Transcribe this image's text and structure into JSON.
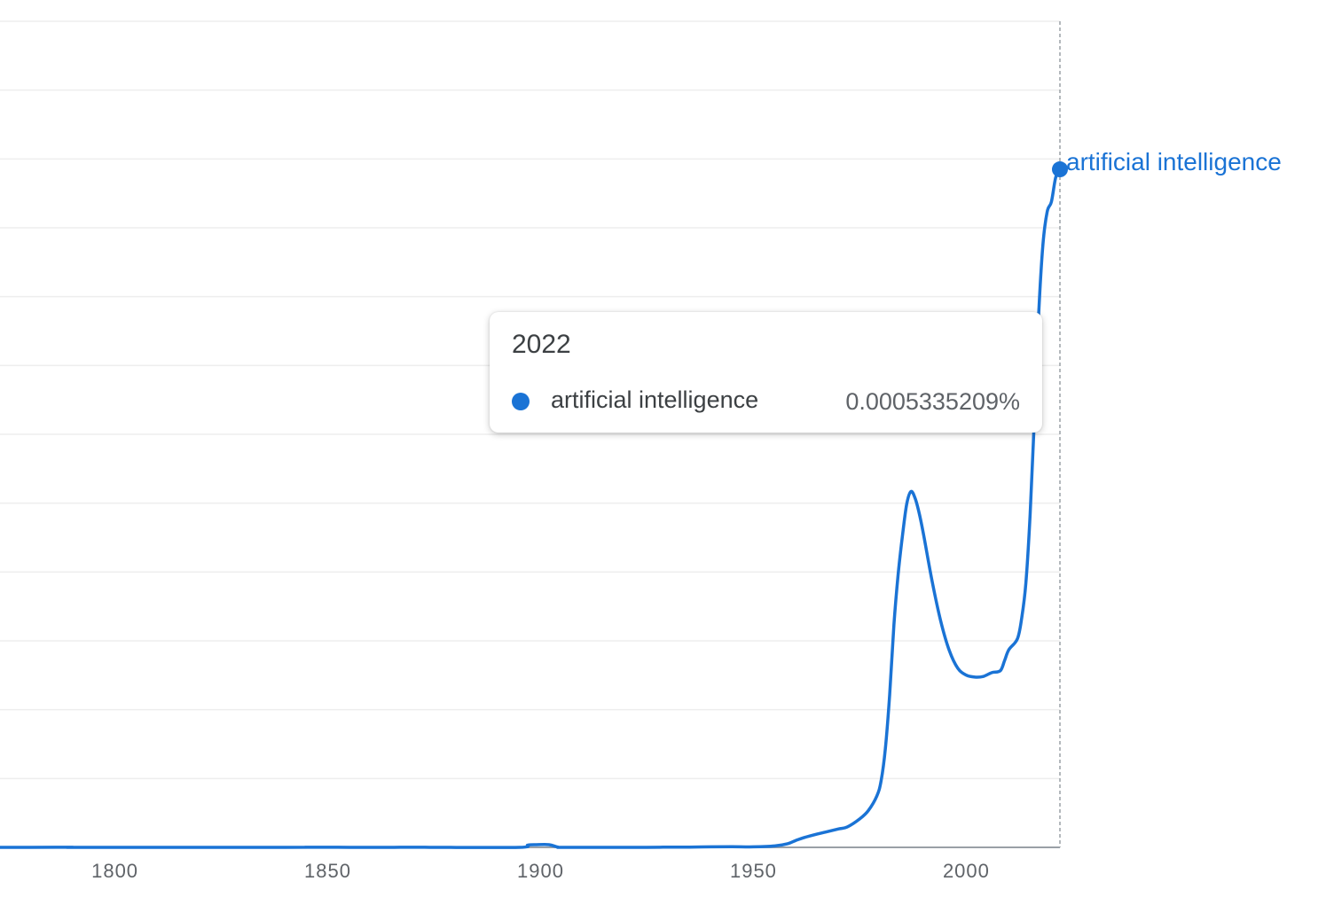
{
  "colors": {
    "series": "#1a73d5",
    "grid": "#eeeeee",
    "axis": "#9aa0a6",
    "tick_text": "#5f6368",
    "hover_line": "#9aa0a6"
  },
  "chart_data": {
    "type": "line",
    "title": "",
    "xlabel": "",
    "ylabel": "",
    "grid": true,
    "legend": "end-of-line label",
    "xlim": [
      1773,
      2022
    ],
    "ylim": [
      0,
      0.00065
    ],
    "x_ticks": [
      1800,
      1850,
      1900,
      1950,
      2000
    ],
    "series": [
      {
        "name": "artificial intelligence",
        "points": [
          [
            1773,
            0.0
          ],
          [
            1780,
            0.0
          ],
          [
            1786,
            1e-07
          ],
          [
            1790,
            1e-07
          ],
          [
            1793,
            0.0
          ],
          [
            1840,
            0.0
          ],
          [
            1845,
            1e-07
          ],
          [
            1850,
            1e-07
          ],
          [
            1855,
            0.0
          ],
          [
            1865,
            0.0
          ],
          [
            1868,
            1e-07
          ],
          [
            1872,
            1e-07
          ],
          [
            1876,
            0.0
          ],
          [
            1895,
            0.0
          ],
          [
            1897,
            1.8e-06
          ],
          [
            1899,
            2.1e-06
          ],
          [
            1902,
            2.1e-06
          ],
          [
            1904,
            3e-07
          ],
          [
            1906,
            0.0
          ],
          [
            1925,
            0.0
          ],
          [
            1930,
            2e-07
          ],
          [
            1935,
            2e-07
          ],
          [
            1940,
            4e-07
          ],
          [
            1945,
            5e-07
          ],
          [
            1950,
            4e-07
          ],
          [
            1955,
            1.1e-06
          ],
          [
            1958,
            2.8e-06
          ],
          [
            1960,
            5.5e-06
          ],
          [
            1962,
            7.8e-06
          ],
          [
            1965,
            1.05e-05
          ],
          [
            1967,
            1.21e-05
          ],
          [
            1970,
            1.45e-05
          ],
          [
            1972,
            1.6e-05
          ],
          [
            1975,
            2.25e-05
          ],
          [
            1977,
            2.9e-05
          ],
          [
            1979,
            4.05e-05
          ],
          [
            1980,
            5.25e-05
          ],
          [
            1981,
            7.8e-05
          ],
          [
            1982,
            0.00012
          ],
          [
            1983,
            0.000175
          ],
          [
            1984,
            0.000215
          ],
          [
            1985,
            0.000245
          ],
          [
            1986,
            0.00027
          ],
          [
            1987,
            0.00028
          ],
          [
            1988,
            0.0002745
          ],
          [
            1989,
            0.000262
          ],
          [
            1990,
            0.0002455
          ],
          [
            1992,
            0.000209
          ],
          [
            1994,
            0.000178
          ],
          [
            1996,
            0.000155
          ],
          [
            1998,
            0.000141
          ],
          [
            2000,
            0.0001355
          ],
          [
            2002,
            0.000134
          ],
          [
            2004,
            0.0001345
          ],
          [
            2006,
            0.0001375
          ],
          [
            2008,
            0.000139
          ],
          [
            2009,
            0.000147
          ],
          [
            2010,
            0.0001555
          ],
          [
            2012,
            0.000164
          ],
          [
            2013,
            0.00018
          ],
          [
            2014,
            0.000208
          ],
          [
            2015,
            0.000262
          ],
          [
            2016,
            0.000338
          ],
          [
            2017,
            0.000419
          ],
          [
            2018,
            0.000474
          ],
          [
            2019,
            0.0005
          ],
          [
            2020,
            0.000508
          ],
          [
            2021,
            0.000527
          ],
          [
            2022,
            0.0005335209
          ]
        ]
      }
    ],
    "end_label": "artificial intelligence",
    "tooltip": {
      "year": "2022",
      "series": "artificial intelligence",
      "value": "0.0005335209%"
    }
  }
}
